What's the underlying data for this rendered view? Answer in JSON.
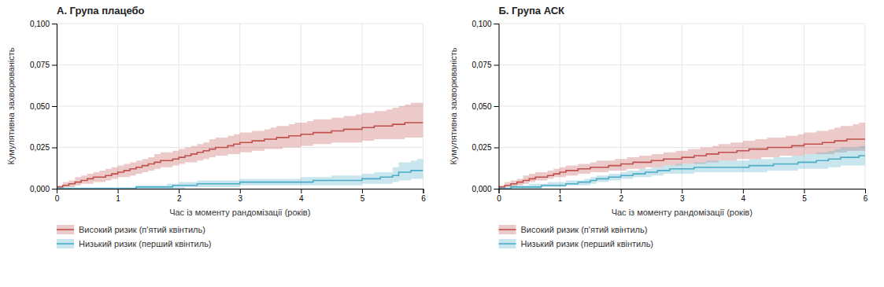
{
  "chart_data": [
    {
      "type": "step",
      "title": "А. Група плацебо",
      "xlabel": "Час із моменту рандомізації (років)",
      "ylabel": "Кумулятивна захворюваність",
      "xlim": [
        0,
        6
      ],
      "ylim": [
        0,
        0.1
      ],
      "xticks": [
        0,
        1,
        2,
        3,
        4,
        5,
        6
      ],
      "yticks": [
        {
          "value": 0.0,
          "label": "0,000"
        },
        {
          "value": 0.025,
          "label": "0,025"
        },
        {
          "value": 0.05,
          "label": "0,050"
        },
        {
          "value": 0.075,
          "label": "0,075"
        },
        {
          "value": 0.1,
          "label": "0,100"
        }
      ],
      "grid": true,
      "legend": "bottom",
      "x": [
        0,
        0.1,
        0.2,
        0.3,
        0.4,
        0.5,
        0.6,
        0.7,
        0.8,
        0.9,
        1.0,
        1.1,
        1.2,
        1.3,
        1.4,
        1.5,
        1.6,
        1.7,
        1.8,
        1.9,
        2.0,
        2.1,
        2.2,
        2.3,
        2.4,
        2.5,
        2.6,
        2.7,
        2.8,
        2.9,
        3.0,
        3.1,
        3.2,
        3.3,
        3.4,
        3.5,
        3.6,
        3.7,
        3.8,
        3.9,
        4.0,
        4.1,
        4.2,
        4.3,
        4.4,
        4.5,
        4.6,
        4.7,
        4.8,
        4.9,
        5.0,
        5.1,
        5.2,
        5.3,
        5.4,
        5.5,
        5.6,
        5.7,
        5.8,
        5.9,
        6.0
      ],
      "series": [
        {
          "name": "Високий ризик (п'ятий квінтиль)",
          "color": "#c0504d",
          "values": [
            0.001,
            0.002,
            0.003,
            0.004,
            0.005,
            0.006,
            0.007,
            0.007,
            0.008,
            0.009,
            0.01,
            0.011,
            0.012,
            0.013,
            0.014,
            0.015,
            0.016,
            0.017,
            0.017,
            0.018,
            0.019,
            0.02,
            0.021,
            0.022,
            0.023,
            0.024,
            0.025,
            0.025,
            0.026,
            0.027,
            0.028,
            0.028,
            0.029,
            0.029,
            0.03,
            0.03,
            0.031,
            0.031,
            0.032,
            0.032,
            0.033,
            0.033,
            0.034,
            0.034,
            0.034,
            0.035,
            0.035,
            0.036,
            0.036,
            0.036,
            0.037,
            0.037,
            0.038,
            0.038,
            0.038,
            0.039,
            0.039,
            0.04,
            0.04,
            0.04,
            0.04
          ],
          "lower": [
            0.0,
            0.001,
            0.001,
            0.002,
            0.003,
            0.003,
            0.004,
            0.004,
            0.005,
            0.006,
            0.007,
            0.007,
            0.008,
            0.009,
            0.01,
            0.011,
            0.012,
            0.013,
            0.013,
            0.014,
            0.015,
            0.016,
            0.016,
            0.017,
            0.018,
            0.019,
            0.02,
            0.02,
            0.021,
            0.021,
            0.022,
            0.022,
            0.023,
            0.023,
            0.024,
            0.024,
            0.024,
            0.025,
            0.025,
            0.025,
            0.026,
            0.026,
            0.027,
            0.027,
            0.027,
            0.028,
            0.028,
            0.028,
            0.028,
            0.028,
            0.029,
            0.029,
            0.03,
            0.03,
            0.03,
            0.03,
            0.03,
            0.031,
            0.031,
            0.031,
            0.031
          ],
          "upper": [
            0.002,
            0.004,
            0.005,
            0.007,
            0.008,
            0.009,
            0.01,
            0.011,
            0.012,
            0.013,
            0.014,
            0.015,
            0.016,
            0.017,
            0.018,
            0.019,
            0.021,
            0.022,
            0.022,
            0.023,
            0.024,
            0.025,
            0.026,
            0.027,
            0.028,
            0.03,
            0.031,
            0.031,
            0.032,
            0.033,
            0.034,
            0.034,
            0.035,
            0.035,
            0.036,
            0.037,
            0.038,
            0.038,
            0.039,
            0.04,
            0.04,
            0.041,
            0.042,
            0.042,
            0.042,
            0.043,
            0.043,
            0.044,
            0.044,
            0.045,
            0.046,
            0.046,
            0.047,
            0.047,
            0.048,
            0.049,
            0.05,
            0.051,
            0.052,
            0.052,
            0.052
          ]
        },
        {
          "name": "Низький ризик (перший квінтиль)",
          "color": "#4bacc6",
          "values": [
            0.0,
            0.0,
            0.0,
            0.0,
            0.0,
            0.0,
            0.0,
            0.0,
            0.0,
            0.0,
            0.0,
            0.0,
            0.0,
            0.001,
            0.001,
            0.001,
            0.001,
            0.001,
            0.001,
            0.002,
            0.002,
            0.002,
            0.002,
            0.003,
            0.003,
            0.003,
            0.003,
            0.003,
            0.003,
            0.003,
            0.004,
            0.004,
            0.004,
            0.004,
            0.004,
            0.004,
            0.004,
            0.004,
            0.004,
            0.004,
            0.004,
            0.004,
            0.005,
            0.005,
            0.005,
            0.005,
            0.005,
            0.005,
            0.005,
            0.005,
            0.006,
            0.006,
            0.006,
            0.007,
            0.007,
            0.008,
            0.01,
            0.01,
            0.011,
            0.011,
            0.011
          ],
          "lower": [
            0.0,
            0.0,
            0.0,
            0.0,
            0.0,
            0.0,
            0.0,
            0.0,
            0.0,
            0.0,
            0.0,
            0.0,
            0.0,
            0.0,
            0.0,
            0.0,
            0.0,
            0.0,
            0.0,
            0.0,
            0.0,
            0.001,
            0.001,
            0.001,
            0.001,
            0.001,
            0.001,
            0.001,
            0.001,
            0.001,
            0.002,
            0.002,
            0.002,
            0.002,
            0.002,
            0.002,
            0.002,
            0.002,
            0.002,
            0.002,
            0.002,
            0.002,
            0.002,
            0.002,
            0.002,
            0.002,
            0.002,
            0.002,
            0.002,
            0.002,
            0.003,
            0.003,
            0.003,
            0.003,
            0.003,
            0.004,
            0.005,
            0.005,
            0.006,
            0.006,
            0.006
          ],
          "upper": [
            0.001,
            0.001,
            0.001,
            0.001,
            0.001,
            0.001,
            0.001,
            0.001,
            0.001,
            0.001,
            0.001,
            0.001,
            0.001,
            0.002,
            0.002,
            0.002,
            0.002,
            0.002,
            0.003,
            0.003,
            0.004,
            0.004,
            0.004,
            0.005,
            0.005,
            0.005,
            0.005,
            0.005,
            0.005,
            0.005,
            0.006,
            0.006,
            0.006,
            0.006,
            0.006,
            0.006,
            0.006,
            0.006,
            0.006,
            0.006,
            0.007,
            0.007,
            0.007,
            0.007,
            0.007,
            0.008,
            0.008,
            0.008,
            0.008,
            0.008,
            0.009,
            0.009,
            0.01,
            0.01,
            0.01,
            0.013,
            0.016,
            0.016,
            0.017,
            0.018,
            0.019
          ]
        }
      ]
    },
    {
      "type": "step",
      "title": "Б. Група АСК",
      "xlabel": "Час із моменту рандомізації (років)",
      "ylabel": "Кумулятивна захворюваність",
      "xlim": [
        0,
        6
      ],
      "ylim": [
        0,
        0.1
      ],
      "xticks": [
        0,
        1,
        2,
        3,
        4,
        5,
        6
      ],
      "yticks": [
        {
          "value": 0.0,
          "label": "0,000"
        },
        {
          "value": 0.025,
          "label": "0,025"
        },
        {
          "value": 0.05,
          "label": "0,050"
        },
        {
          "value": 0.075,
          "label": "0,075"
        },
        {
          "value": 0.1,
          "label": "0,100"
        }
      ],
      "grid": true,
      "legend": "bottom",
      "x": [
        0,
        0.1,
        0.2,
        0.3,
        0.4,
        0.5,
        0.6,
        0.7,
        0.8,
        0.9,
        1.0,
        1.1,
        1.2,
        1.3,
        1.4,
        1.5,
        1.6,
        1.7,
        1.8,
        1.9,
        2.0,
        2.1,
        2.2,
        2.3,
        2.4,
        2.5,
        2.6,
        2.7,
        2.8,
        2.9,
        3.0,
        3.1,
        3.2,
        3.3,
        3.4,
        3.5,
        3.6,
        3.7,
        3.8,
        3.9,
        4.0,
        4.1,
        4.2,
        4.3,
        4.4,
        4.5,
        4.6,
        4.7,
        4.8,
        4.9,
        5.0,
        5.1,
        5.2,
        5.3,
        5.4,
        5.5,
        5.6,
        5.7,
        5.8,
        5.9,
        6.0
      ],
      "series": [
        {
          "name": "Високий ризик (п'ятий квінтиль)",
          "color": "#c0504d",
          "values": [
            0.001,
            0.002,
            0.003,
            0.004,
            0.005,
            0.006,
            0.007,
            0.007,
            0.008,
            0.009,
            0.01,
            0.011,
            0.011,
            0.012,
            0.012,
            0.013,
            0.013,
            0.013,
            0.014,
            0.014,
            0.015,
            0.015,
            0.016,
            0.016,
            0.016,
            0.017,
            0.017,
            0.018,
            0.018,
            0.018,
            0.019,
            0.019,
            0.02,
            0.02,
            0.021,
            0.021,
            0.022,
            0.022,
            0.022,
            0.023,
            0.023,
            0.024,
            0.024,
            0.024,
            0.025,
            0.025,
            0.025,
            0.025,
            0.026,
            0.026,
            0.027,
            0.027,
            0.027,
            0.028,
            0.028,
            0.029,
            0.029,
            0.03,
            0.03,
            0.03,
            0.03
          ],
          "lower": [
            0.0,
            0.001,
            0.001,
            0.002,
            0.003,
            0.004,
            0.005,
            0.005,
            0.006,
            0.007,
            0.007,
            0.008,
            0.008,
            0.009,
            0.009,
            0.01,
            0.01,
            0.01,
            0.011,
            0.011,
            0.011,
            0.012,
            0.012,
            0.012,
            0.013,
            0.013,
            0.013,
            0.014,
            0.014,
            0.014,
            0.015,
            0.015,
            0.015,
            0.015,
            0.016,
            0.016,
            0.017,
            0.017,
            0.017,
            0.018,
            0.018,
            0.018,
            0.018,
            0.019,
            0.019,
            0.019,
            0.02,
            0.02,
            0.02,
            0.02,
            0.021,
            0.021,
            0.021,
            0.021,
            0.021,
            0.022,
            0.022,
            0.023,
            0.023,
            0.023,
            0.023
          ],
          "upper": [
            0.002,
            0.004,
            0.005,
            0.006,
            0.008,
            0.009,
            0.01,
            0.01,
            0.011,
            0.012,
            0.013,
            0.014,
            0.014,
            0.015,
            0.015,
            0.016,
            0.017,
            0.017,
            0.017,
            0.018,
            0.018,
            0.019,
            0.019,
            0.02,
            0.02,
            0.021,
            0.021,
            0.022,
            0.022,
            0.023,
            0.023,
            0.024,
            0.024,
            0.025,
            0.025,
            0.026,
            0.027,
            0.027,
            0.028,
            0.028,
            0.029,
            0.029,
            0.03,
            0.03,
            0.031,
            0.031,
            0.031,
            0.032,
            0.032,
            0.033,
            0.034,
            0.034,
            0.035,
            0.035,
            0.036,
            0.037,
            0.038,
            0.038,
            0.039,
            0.04,
            0.047
          ]
        },
        {
          "name": "Низький ризик (перший квінтиль)",
          "color": "#4bacc6",
          "values": [
            0.0,
            0.0,
            0.001,
            0.001,
            0.001,
            0.001,
            0.001,
            0.002,
            0.002,
            0.002,
            0.002,
            0.003,
            0.003,
            0.004,
            0.004,
            0.005,
            0.006,
            0.006,
            0.007,
            0.007,
            0.008,
            0.008,
            0.009,
            0.009,
            0.01,
            0.01,
            0.011,
            0.011,
            0.012,
            0.012,
            0.012,
            0.012,
            0.013,
            0.013,
            0.013,
            0.013,
            0.013,
            0.013,
            0.013,
            0.013,
            0.013,
            0.014,
            0.014,
            0.014,
            0.014,
            0.015,
            0.015,
            0.015,
            0.015,
            0.016,
            0.016,
            0.016,
            0.017,
            0.017,
            0.018,
            0.018,
            0.019,
            0.019,
            0.019,
            0.02,
            0.02
          ],
          "lower": [
            0.0,
            0.0,
            0.0,
            0.0,
            0.0,
            0.0,
            0.0,
            0.001,
            0.001,
            0.001,
            0.001,
            0.002,
            0.002,
            0.002,
            0.002,
            0.003,
            0.004,
            0.004,
            0.005,
            0.005,
            0.006,
            0.006,
            0.007,
            0.007,
            0.007,
            0.008,
            0.008,
            0.009,
            0.009,
            0.009,
            0.009,
            0.009,
            0.01,
            0.01,
            0.01,
            0.01,
            0.01,
            0.01,
            0.01,
            0.01,
            0.01,
            0.01,
            0.01,
            0.01,
            0.011,
            0.011,
            0.011,
            0.011,
            0.011,
            0.012,
            0.012,
            0.012,
            0.012,
            0.012,
            0.013,
            0.013,
            0.014,
            0.014,
            0.014,
            0.014,
            0.015
          ],
          "upper": [
            0.001,
            0.001,
            0.002,
            0.002,
            0.002,
            0.003,
            0.003,
            0.003,
            0.004,
            0.004,
            0.004,
            0.005,
            0.005,
            0.005,
            0.006,
            0.007,
            0.008,
            0.008,
            0.009,
            0.009,
            0.01,
            0.011,
            0.011,
            0.012,
            0.012,
            0.013,
            0.013,
            0.014,
            0.014,
            0.015,
            0.015,
            0.015,
            0.016,
            0.016,
            0.017,
            0.017,
            0.017,
            0.017,
            0.017,
            0.017,
            0.017,
            0.018,
            0.018,
            0.018,
            0.018,
            0.019,
            0.019,
            0.019,
            0.02,
            0.02,
            0.021,
            0.021,
            0.022,
            0.022,
            0.023,
            0.024,
            0.025,
            0.025,
            0.025,
            0.026,
            0.026
          ]
        }
      ]
    }
  ]
}
